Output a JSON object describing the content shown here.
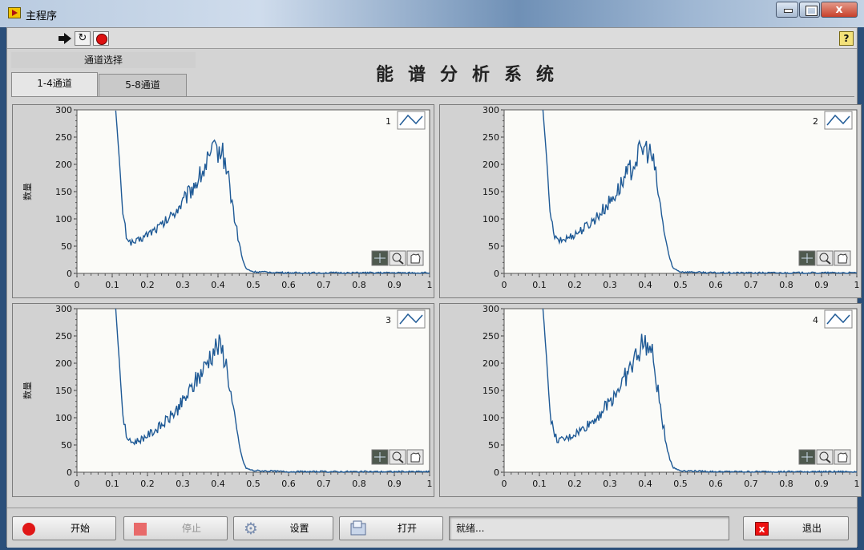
{
  "window": {
    "title": "主程序",
    "close_glyph": "x"
  },
  "toolbar": {
    "help_label": "?"
  },
  "header": {
    "tab_group_label": "通道选择",
    "title": "能谱分析系统",
    "tabs": [
      {
        "label": "1-4通道",
        "selected": true
      },
      {
        "label": "5-8通道",
        "selected": false
      }
    ]
  },
  "colors": {
    "plot_line": "#1f5a96",
    "plot_bg": "#fbfbf8",
    "panel_bg": "#d2d2d2"
  },
  "chart_data": [
    {
      "type": "line",
      "channel_label": "1",
      "ylabel": "数量",
      "xlim": [
        0,
        1
      ],
      "ylim": [
        0,
        300
      ],
      "x_ticks": [
        "0",
        "0.1",
        "0.2",
        "0.3",
        "0.4",
        "0.5",
        "0.6",
        "0.7",
        "0.8",
        "0.9",
        "1"
      ],
      "y_ticks": [
        "0",
        "50",
        "100",
        "150",
        "200",
        "250",
        "300"
      ],
      "x": [
        0.11,
        0.12,
        0.13,
        0.14,
        0.15,
        0.16,
        0.18,
        0.2,
        0.22,
        0.24,
        0.26,
        0.28,
        0.3,
        0.32,
        0.34,
        0.36,
        0.37,
        0.38,
        0.39,
        0.4,
        0.41,
        0.42,
        0.43,
        0.44,
        0.45,
        0.46,
        0.47,
        0.48,
        0.5,
        0.55,
        0.6,
        0.7,
        0.8,
        0.9,
        1.0
      ],
      "y": [
        300,
        210,
        110,
        70,
        58,
        56,
        62,
        72,
        80,
        88,
        100,
        115,
        130,
        150,
        170,
        190,
        205,
        215,
        225,
        228,
        222,
        210,
        175,
        130,
        90,
        55,
        25,
        8,
        3,
        2,
        1,
        1,
        1,
        1,
        1
      ],
      "grid": false,
      "show_legend_icon": true
    },
    {
      "type": "line",
      "channel_label": "2",
      "ylabel": "",
      "xlim": [
        0,
        1
      ],
      "ylim": [
        0,
        300
      ],
      "x_ticks": [
        "0",
        "0.1",
        "0.2",
        "0.3",
        "0.4",
        "0.5",
        "0.6",
        "0.7",
        "0.8",
        "0.9",
        "1"
      ],
      "y_ticks": [
        "0",
        "50",
        "100",
        "150",
        "200",
        "250",
        "300"
      ],
      "x": [
        0.11,
        0.12,
        0.13,
        0.14,
        0.15,
        0.16,
        0.18,
        0.2,
        0.22,
        0.24,
        0.26,
        0.28,
        0.3,
        0.32,
        0.34,
        0.36,
        0.37,
        0.38,
        0.39,
        0.4,
        0.41,
        0.42,
        0.43,
        0.44,
        0.45,
        0.46,
        0.47,
        0.48,
        0.5,
        0.55,
        0.6,
        0.7,
        0.8,
        0.9,
        1.0
      ],
      "y": [
        300,
        215,
        115,
        72,
        60,
        60,
        65,
        72,
        80,
        90,
        102,
        116,
        132,
        150,
        172,
        192,
        206,
        216,
        226,
        230,
        224,
        212,
        178,
        135,
        92,
        56,
        26,
        9,
        3,
        2,
        1,
        1,
        1,
        1,
        1
      ],
      "grid": false,
      "show_legend_icon": true
    },
    {
      "type": "line",
      "channel_label": "3",
      "ylabel": "数量",
      "xlim": [
        0,
        1
      ],
      "ylim": [
        0,
        300
      ],
      "x_ticks": [
        "0",
        "0.1",
        "0.2",
        "0.3",
        "0.4",
        "0.5",
        "0.6",
        "0.7",
        "0.8",
        "0.9",
        "1"
      ],
      "y_ticks": [
        "0",
        "50",
        "100",
        "150",
        "200",
        "250",
        "300"
      ],
      "x": [
        0.11,
        0.12,
        0.13,
        0.14,
        0.15,
        0.16,
        0.18,
        0.2,
        0.22,
        0.24,
        0.26,
        0.28,
        0.3,
        0.32,
        0.34,
        0.36,
        0.37,
        0.38,
        0.39,
        0.4,
        0.41,
        0.42,
        0.43,
        0.44,
        0.45,
        0.46,
        0.47,
        0.48,
        0.5,
        0.55,
        0.6,
        0.7,
        0.8,
        0.9,
        1.0
      ],
      "y": [
        300,
        205,
        105,
        68,
        56,
        55,
        60,
        68,
        76,
        86,
        98,
        112,
        128,
        148,
        170,
        190,
        205,
        216,
        226,
        232,
        225,
        210,
        172,
        128,
        88,
        52,
        22,
        7,
        3,
        2,
        1,
        1,
        1,
        1,
        1
      ],
      "grid": false,
      "show_legend_icon": true
    },
    {
      "type": "line",
      "channel_label": "4",
      "ylabel": "",
      "xlim": [
        0,
        1
      ],
      "ylim": [
        0,
        300
      ],
      "x_ticks": [
        "0",
        "0.1",
        "0.2",
        "0.3",
        "0.4",
        "0.5",
        "0.6",
        "0.7",
        "0.8",
        "0.9",
        "1"
      ],
      "y_ticks": [
        "0",
        "50",
        "100",
        "150",
        "200",
        "250",
        "300"
      ],
      "x": [
        0.11,
        0.12,
        0.13,
        0.14,
        0.15,
        0.16,
        0.18,
        0.2,
        0.22,
        0.24,
        0.26,
        0.28,
        0.3,
        0.32,
        0.34,
        0.36,
        0.37,
        0.38,
        0.39,
        0.4,
        0.41,
        0.42,
        0.43,
        0.44,
        0.45,
        0.46,
        0.47,
        0.48,
        0.5,
        0.55,
        0.6,
        0.7,
        0.8,
        0.9,
        1.0
      ],
      "y": [
        300,
        212,
        112,
        72,
        60,
        58,
        62,
        70,
        78,
        88,
        100,
        114,
        130,
        150,
        170,
        192,
        208,
        220,
        232,
        238,
        228,
        212,
        176,
        130,
        90,
        52,
        24,
        8,
        3,
        2,
        1,
        1,
        1,
        1,
        1
      ],
      "grid": false,
      "show_legend_icon": true
    }
  ],
  "graph_tools": [
    {
      "icon": "cursor-crosshair-icon"
    },
    {
      "icon": "zoom-icon"
    },
    {
      "icon": "pan-hand-icon"
    }
  ],
  "buttons": {
    "start": "开始",
    "stop": "停止",
    "settings": "设置",
    "open": "打开",
    "exit": "退出",
    "exit_glyph": "x"
  },
  "status": {
    "text": "就绪..."
  }
}
